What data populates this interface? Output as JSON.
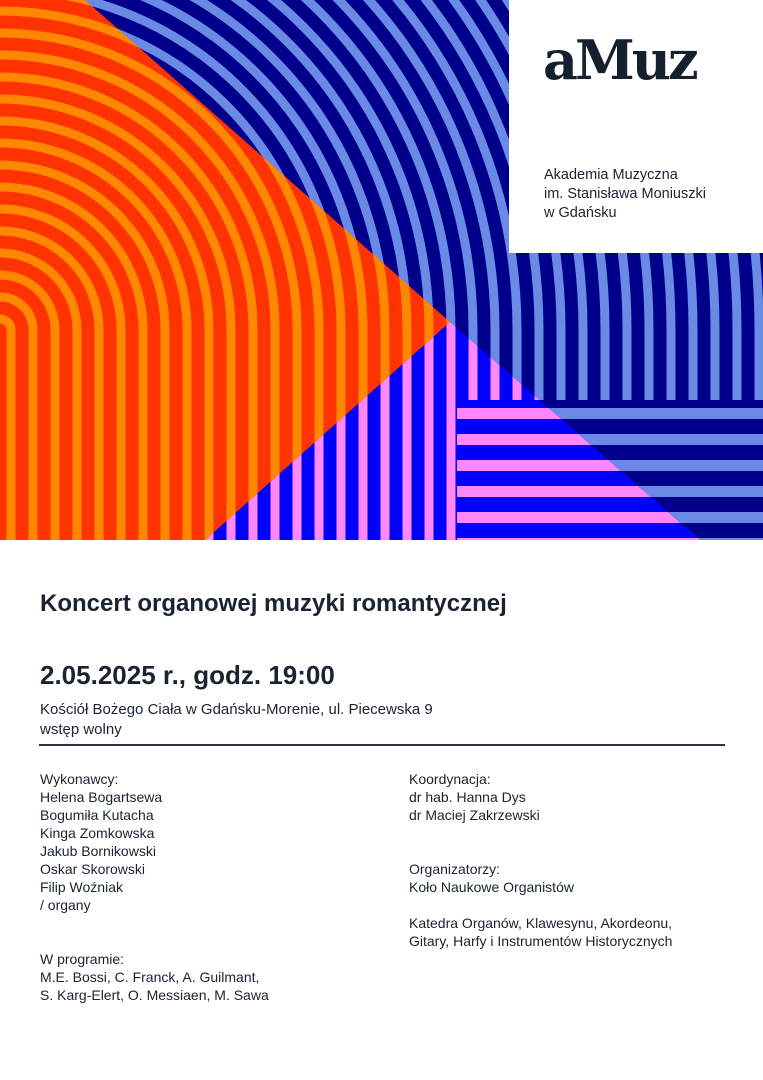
{
  "colors": {
    "navy": "#00008b",
    "light_blue": "#6a8ae6",
    "pink": "#ff88ff",
    "blue": "#0000ff",
    "red": "#ff3300",
    "orange": "#ff8800",
    "text": "#1a2233"
  },
  "logo": {
    "text": "aMuz"
  },
  "institution": [
    "Akademia Muzyczna",
    "im. Stanisława Moniuszki",
    "w Gdańsku"
  ],
  "event": {
    "title": "Koncert organowej muzyki romantycznej",
    "date": "2.05.2025 r., godz. 19:00",
    "venue": "Kościół Bożego Ciała w Gdańsku-Morenie, ul. Piecewska 9",
    "admission": "wstęp wolny"
  },
  "performers": {
    "heading": "Wykonawcy:",
    "names": [
      "Helena Bogartsewa",
      "Bogumiła Kutacha",
      "Kinga Zomkowska",
      "Jakub Bornikowski",
      "Oskar Skorowski",
      "Filip Woźniak"
    ],
    "instrument": "/ organy"
  },
  "program": {
    "heading": "W programie:",
    "lines": [
      "M.E. Bossi, C. Franck, A. Guilmant,",
      "S. Karg-Elert, O. Messiaen, M. Sawa"
    ]
  },
  "coordination": {
    "heading": "Koordynacja:",
    "names": [
      "dr hab. Hanna Dys",
      "dr Maciej Zakrzewski"
    ]
  },
  "organizers": {
    "heading": "Organizatorzy:",
    "lines": [
      "Koło Naukowe Organistów"
    ],
    "department": [
      "Katedra Organów, Klawesynu, Akordeonu,",
      "Gitary, Harfy i Instrumentów Historycznych"
    ]
  }
}
